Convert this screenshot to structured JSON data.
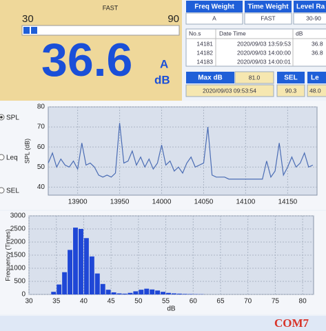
{
  "meter": {
    "mode": "FAST",
    "range_min": 30,
    "range_max": 90,
    "value": 36.6,
    "weighting": "A",
    "unit": "dB"
  },
  "settings": [
    {
      "label": "Freq Weight",
      "value": "A"
    },
    {
      "label": "Time Weight",
      "value": "FAST"
    },
    {
      "label": "Level Ra",
      "value": "30-90"
    }
  ],
  "log_table": {
    "columns": [
      "No.s",
      "Date Time",
      "dB"
    ],
    "rows": [
      [
        "14181",
        "2020/09/03 13:59:53",
        "36.8"
      ],
      [
        "14182",
        "2020/09/03 14:00:00",
        "36.8"
      ],
      [
        "14183",
        "2020/09/03 14:00:01"
      ]
    ]
  },
  "max": {
    "label": "Max dB",
    "value": "81.0",
    "time": "2020/09/03 09:53:54"
  },
  "sel": {
    "label": "SEL",
    "value": "90.3"
  },
  "leq": {
    "label": "Le",
    "value": "48.0"
  },
  "display_options": [
    "SPL",
    "Leq",
    "SEL"
  ],
  "watermark": "COM7",
  "chart_data": [
    {
      "type": "line",
      "y_label": "SPL (dB)",
      "color": "#4a6cb4",
      "grid": true,
      "x": [
        13865,
        13870,
        13875,
        13880,
        13885,
        13890,
        13895,
        13900,
        13905,
        13910,
        13915,
        13920,
        13925,
        13930,
        13935,
        13940,
        13945,
        13950,
        13955,
        13960,
        13965,
        13970,
        13975,
        13980,
        13985,
        13990,
        13995,
        14000,
        14005,
        14010,
        14015,
        14020,
        14025,
        14030,
        14035,
        14040,
        14045,
        14050,
        14055,
        14060,
        14065,
        14070,
        14075,
        14080,
        14085,
        14090,
        14095,
        14100,
        14105,
        14110,
        14115,
        14120,
        14125,
        14130,
        14135,
        14140,
        14145,
        14150,
        14155,
        14160,
        14165,
        14170,
        14175,
        14180
      ],
      "values": [
        52,
        57,
        50,
        54,
        51,
        50,
        53,
        49,
        62,
        51,
        52,
        50,
        46,
        45,
        46,
        45,
        47,
        72,
        52,
        53,
        58,
        51,
        55,
        50,
        54,
        49,
        52,
        61,
        51,
        53,
        48,
        50,
        47,
        52,
        55,
        50,
        51,
        52,
        70,
        46,
        45,
        45,
        45,
        44,
        44,
        44,
        44,
        44,
        44,
        44,
        44,
        44,
        53,
        45,
        48,
        62,
        46,
        50,
        55,
        50,
        52,
        57,
        50,
        51
      ],
      "xlim": [
        13865,
        14185
      ],
      "xticks": [
        13900,
        13950,
        14000,
        14050,
        14100,
        14150
      ],
      "ylim": [
        36,
        80
      ],
      "yticks": [
        40,
        50,
        60,
        70,
        80
      ]
    },
    {
      "type": "histogram",
      "y_label": "Frequency (Times)",
      "x_label": "dB",
      "color": "#1f47d6",
      "grid": true,
      "bins": [
        34,
        35,
        36,
        37,
        38,
        39,
        40,
        41,
        42,
        43,
        44,
        45,
        46,
        47,
        48,
        49,
        50,
        51,
        52,
        53,
        54,
        55,
        56,
        57,
        58,
        59,
        60,
        61,
        62
      ],
      "values": [
        100,
        380,
        850,
        1700,
        2550,
        2500,
        2150,
        1450,
        800,
        400,
        180,
        80,
        40,
        30,
        60,
        120,
        180,
        220,
        190,
        150,
        100,
        60,
        40,
        30,
        20,
        15,
        10,
        8
      ],
      "xlim": [
        30,
        82
      ],
      "xticks": [
        30,
        35,
        40,
        45,
        50,
        55,
        60,
        65,
        70,
        75,
        80
      ],
      "ylim": [
        0,
        3000
      ],
      "yticks": [
        0,
        500,
        1000,
        1500,
        2000,
        2500,
        3000
      ]
    }
  ]
}
